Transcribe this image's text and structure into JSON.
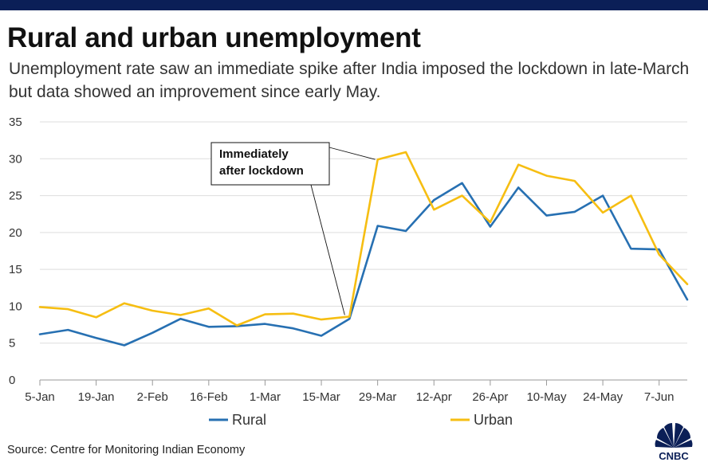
{
  "header": {
    "title": "Rural and urban unemployment",
    "subtitle": "Unemployment rate saw an immediate spike after India imposed the lockdown in late-March but data showed an improvement since early May."
  },
  "footer": {
    "source": "Source: Centre for Monitoring Indian Economy",
    "logo_text": "CNBC"
  },
  "colors": {
    "rural": "#2770b2",
    "urban": "#f6be12",
    "grid": "#dddddd",
    "top_bar": "#0b1f57"
  },
  "chart_data": {
    "type": "line",
    "title": "Rural and urban unemployment",
    "xlabel": "",
    "ylabel": "",
    "ylim": [
      0,
      35
    ],
    "y_ticks": [
      0,
      5,
      10,
      15,
      20,
      25,
      30,
      35
    ],
    "x_tick_labels": [
      "5-Jan",
      "19-Jan",
      "2-Feb",
      "16-Feb",
      "1-Mar",
      "15-Mar",
      "29-Mar",
      "12-Apr",
      "26-Apr",
      "10-May",
      "24-May",
      "7-Jun"
    ],
    "x": [
      "5-Jan",
      "12-Jan",
      "19-Jan",
      "26-Jan",
      "2-Feb",
      "9-Feb",
      "16-Feb",
      "23-Feb",
      "1-Mar",
      "8-Mar",
      "15-Mar",
      "22-Mar",
      "29-Mar",
      "5-Apr",
      "12-Apr",
      "19-Apr",
      "26-Apr",
      "3-May",
      "10-May",
      "17-May",
      "24-May",
      "31-May",
      "7-Jun",
      "14-Jun"
    ],
    "grid": true,
    "legend": "bottom",
    "series": [
      {
        "name": "Rural",
        "color": "#2770b2",
        "values": [
          6.2,
          6.8,
          5.7,
          4.7,
          6.4,
          8.3,
          7.2,
          7.3,
          7.6,
          7.0,
          6.0,
          8.3,
          20.9,
          20.2,
          24.4,
          26.7,
          20.8,
          26.1,
          22.3,
          22.8,
          25.0,
          17.8,
          17.7,
          10.9
        ]
      },
      {
        "name": "Urban",
        "color": "#f6be12",
        "values": [
          9.9,
          9.6,
          8.5,
          10.4,
          9.4,
          8.8,
          9.7,
          7.4,
          8.9,
          9.0,
          8.2,
          8.6,
          29.9,
          30.9,
          23.1,
          25.0,
          21.4,
          29.2,
          27.7,
          27.0,
          22.7,
          25.0,
          17.0,
          13.0
        ]
      }
    ],
    "annotations": [
      {
        "text_lines": [
          "Immediately",
          "after lockdown"
        ],
        "x": "22-Mar",
        "y": 8.6,
        "secondary_x": "29-Mar",
        "secondary_y": 29.9
      }
    ]
  }
}
